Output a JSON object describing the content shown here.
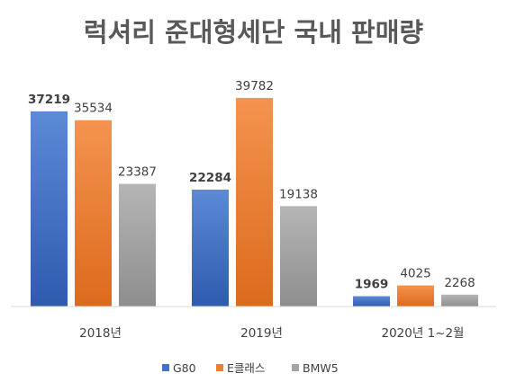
{
  "chart_data": {
    "type": "bar",
    "title": "럭셔리 준대형세단 국내 판매량",
    "categories": [
      "2018년",
      "2019년",
      "2020년 1~2월"
    ],
    "series": [
      {
        "name": "G80",
        "values": [
          37219,
          22284,
          1969
        ],
        "color": "#4472C4",
        "bold_labels": true
      },
      {
        "name": "E클래스",
        "values": [
          35534,
          39782,
          4025
        ],
        "color": "#ED7D31",
        "bold_labels": false
      },
      {
        "name": "BMW5",
        "values": [
          23387,
          19138,
          2268
        ],
        "color": "#A5A5A5",
        "bold_labels": false
      }
    ],
    "ylim": [
      0,
      42000
    ],
    "grid": false,
    "legend": "bottom"
  }
}
